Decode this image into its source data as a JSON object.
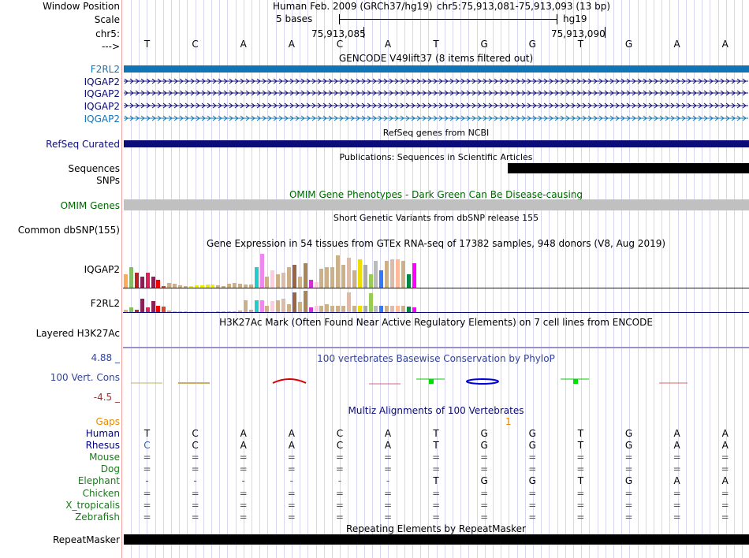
{
  "header": {
    "window_position_label": "Window Position",
    "scale_label": "Scale",
    "chr_label": "chr5:",
    "arrow_label": "--->",
    "assembly_text": "Human Feb. 2009 (GRCh37/hg19)",
    "position_text": "chr5:75,913,081-75,913,093 (13 bp)",
    "scale_text": "5 bases",
    "db_text": "hg19",
    "coord_left": "75,913,085",
    "coord_right": "75,913,090"
  },
  "bases": [
    "T",
    "C",
    "A",
    "A",
    "C",
    "A",
    "T",
    "G",
    "G",
    "T",
    "G",
    "A",
    "A"
  ],
  "gencode": {
    "title": "GENCODE V49lift37 (8 items filtered out)",
    "genes": [
      "F2RL2",
      "IQGAP2",
      "IQGAP2",
      "IQGAP2",
      "IQGAP2"
    ]
  },
  "refseq": {
    "title": "RefSeq genes from NCBI",
    "label": "RefSeq Curated"
  },
  "publications": {
    "title": "Publications: Sequences in Scientific Articles",
    "sequences_label": "Sequences",
    "snps_label": "SNPs"
  },
  "omim": {
    "title": "OMIM Gene Phenotypes - Dark Green Can Be Disease-causing",
    "label": "OMIM Genes"
  },
  "dbsnp": {
    "title": "Short Genetic Variants from dbSNP release 155",
    "label": "Common dbSNP(155)"
  },
  "gtex": {
    "title": "Gene Expression in 54 tissues from GTEx RNA-seq of 17382 samples, 948 donors (V8, Aug 2019)",
    "gene1": "IQGAP2",
    "gene2": "F2RL2",
    "gene1_values": [
      0.35,
      0.55,
      0.4,
      0.3,
      0.4,
      0.3,
      0.2,
      0.05,
      0.12,
      0.1,
      0.06,
      0.05,
      0.05,
      0.06,
      0.07,
      0.08,
      0.08,
      0.06,
      0.05,
      0.1,
      0.12,
      0.1,
      0.09,
      0.08,
      0.55,
      0.9,
      0.3,
      0.45,
      0.35,
      0.4,
      0.55,
      0.6,
      0.3,
      0.65,
      0.2,
      0.15,
      0.5,
      0.55,
      0.55,
      0.85,
      0.6,
      0.8,
      0.45,
      0.75,
      0.6,
      0.35,
      0.7,
      0.45,
      0.7,
      0.75,
      0.75,
      0.7,
      0.35,
      0.65
    ],
    "gene2_values": [
      0.1,
      0.2,
      0.1,
      0.6,
      0.2,
      0.5,
      0.3,
      0.25,
      0.08,
      0.05,
      0.04,
      0.03,
      0.03,
      0.03,
      0.04,
      0.05,
      0.05,
      0.04,
      0.04,
      0.05,
      0.05,
      0.06,
      0.55,
      0.1,
      0.55,
      0.55,
      0.3,
      0.5,
      0.55,
      0.6,
      0.35,
      0.9,
      0.45,
      0.95,
      0.2,
      0.3,
      0.3,
      0.35,
      0.3,
      0.3,
      0.3,
      0.9,
      0.3,
      0.3,
      0.3,
      0.85,
      0.3,
      0.3,
      0.3,
      0.3,
      0.3,
      0.3,
      0.25,
      0.2
    ],
    "colors": [
      "#ffaa55",
      "#88bb66",
      "#bb2222",
      "#882255",
      "#dd2255",
      "#882255",
      "#ee0000",
      "#dd4422",
      "#ccb088",
      "#ccb088",
      "#ccb088",
      "#ccb088",
      "#eeee00",
      "#eeee00",
      "#eeee00",
      "#eeee00",
      "#eeee00",
      "#ccb088",
      "#ccb088",
      "#ccb088",
      "#ccb088",
      "#ccb088",
      "#ccb088",
      "#ccb088",
      "#22cccc",
      "#ee88ee",
      "#ccb088",
      "#ffccdd",
      "#ccb088",
      "#ddbbaa",
      "#ccb088",
      "#996644",
      "#ccb088",
      "#aa8855",
      "#cc33cc",
      "#ffccdd",
      "#ccb088",
      "#ccb088",
      "#ccb088",
      "#ccb088",
      "#ccb088",
      "#ddbbaa",
      "#ccb088",
      "#eedd00",
      "#aaaaaa",
      "#99cc55",
      "#bbbbbb",
      "#3377ff",
      "#ccb088",
      "#ddbbaa",
      "#ffbb99",
      "#ccb088",
      "#008844",
      "#ff00ff"
    ]
  },
  "h3k27ac": {
    "title": "H3K27Ac Mark (Often Found Near Active Regulatory Elements) on 7 cell lines from ENCODE",
    "label": "Layered H3K27Ac"
  },
  "phylop": {
    "title": "100 vertebrates Basewise Conservation by PhyloP",
    "label": "100 Vert. Cons",
    "max_label": "4.88 _",
    "min_label": "-4.5 _",
    "colors": {
      "pos": "#0000dd",
      "neg": "#dd0000",
      "max": "#334499",
      "min": "#993333"
    }
  },
  "multiz": {
    "title": "Multiz Alignments of 100 Vertebrates",
    "gaps_label": "Gaps",
    "gaps_value": "1",
    "species": [
      {
        "name": "Human",
        "color": "#000080",
        "row": [
          "T",
          "C",
          "A",
          "A",
          "C",
          "A",
          "T",
          "G",
          "G",
          "T",
          "G",
          "A",
          "A"
        ]
      },
      {
        "name": "Rhesus",
        "color": "#000080",
        "row": [
          "C",
          "C",
          "A",
          "A",
          "C",
          "A",
          "T",
          "G",
          "G",
          "T",
          "G",
          "A",
          "A"
        ]
      },
      {
        "name": "Mouse",
        "color": "#1a7a1a",
        "row": [
          "=",
          "=",
          "=",
          "=",
          "=",
          "=",
          "=",
          "=",
          "=",
          "=",
          "=",
          "=",
          "="
        ]
      },
      {
        "name": "Dog",
        "color": "#1a7a1a",
        "row": [
          "=",
          "=",
          "=",
          "=",
          "=",
          "=",
          "=",
          "=",
          "=",
          "=",
          "=",
          "=",
          "="
        ]
      },
      {
        "name": "Elephant",
        "color": "#1a7a1a",
        "row": [
          "-",
          "-",
          "-",
          "-",
          "-",
          "-",
          "T",
          "G",
          "G",
          "T",
          "G",
          "A",
          "A"
        ]
      },
      {
        "name": "Chicken",
        "color": "#1a7a1a",
        "row": [
          "=",
          "=",
          "=",
          "=",
          "=",
          "=",
          "=",
          "=",
          "=",
          "=",
          "=",
          "=",
          "="
        ]
      },
      {
        "name": "X_tropicalis",
        "color": "#1a7a1a",
        "row": [
          "=",
          "=",
          "=",
          "=",
          "=",
          "=",
          "=",
          "=",
          "=",
          "=",
          "=",
          "=",
          "="
        ]
      },
      {
        "name": "Zebrafish",
        "color": "#1a7a1a",
        "row": [
          "=",
          "=",
          "=",
          "=",
          "=",
          "=",
          "=",
          "=",
          "=",
          "=",
          "=",
          "=",
          "="
        ]
      }
    ]
  },
  "repeatmasker": {
    "title": "Repeating Elements by RepeatMasker",
    "label": "RepeatMasker"
  },
  "colors": {
    "gencode": "#1075b6",
    "refseq": "#0c0c78",
    "omim_label": "#006600",
    "omim_bar": "#c0c0c0",
    "gaps": "#ea8a00"
  }
}
